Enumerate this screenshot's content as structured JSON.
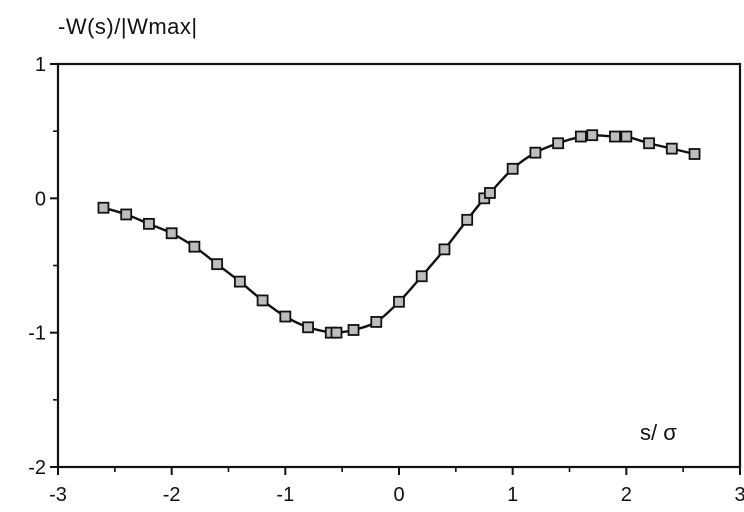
{
  "chart_data": {
    "type": "line",
    "ylabel": "-W(s)/|Wmax|",
    "xlabel": "s/ σ",
    "xlim": [
      -3,
      3
    ],
    "ylim": [
      -2,
      1
    ],
    "xticks": [
      -3,
      -2,
      -1,
      0,
      1,
      2,
      3
    ],
    "yticks": [
      1,
      0,
      -1,
      -2
    ],
    "xtick_labels": [
      "-3",
      "-2",
      "-1",
      "0",
      "1",
      "2",
      "3"
    ],
    "ytick_labels": [
      "1",
      "0",
      "-1",
      "-2"
    ],
    "grid": false,
    "series": [
      {
        "marker": "square",
        "x": [
          -2.6,
          -2.4,
          -2.2,
          -2.0,
          -1.8,
          -1.6,
          -1.4,
          -1.2,
          -1.0,
          -0.8,
          -0.6,
          -0.55,
          -0.4,
          -0.2,
          0.0,
          0.2,
          0.4,
          0.6,
          0.75,
          0.8,
          1.0,
          1.2,
          1.4,
          1.6,
          1.7,
          1.9,
          2.0,
          2.2,
          2.4,
          2.6
        ],
        "y": [
          -0.07,
          -0.12,
          -0.19,
          -0.26,
          -0.36,
          -0.49,
          -0.62,
          -0.76,
          -0.88,
          -0.96,
          -1.0,
          -1.0,
          -0.98,
          -0.92,
          -0.77,
          -0.58,
          -0.38,
          -0.16,
          0.0,
          0.04,
          0.22,
          0.34,
          0.41,
          0.46,
          0.47,
          0.46,
          0.46,
          0.41,
          0.37,
          0.33
        ]
      }
    ]
  }
}
